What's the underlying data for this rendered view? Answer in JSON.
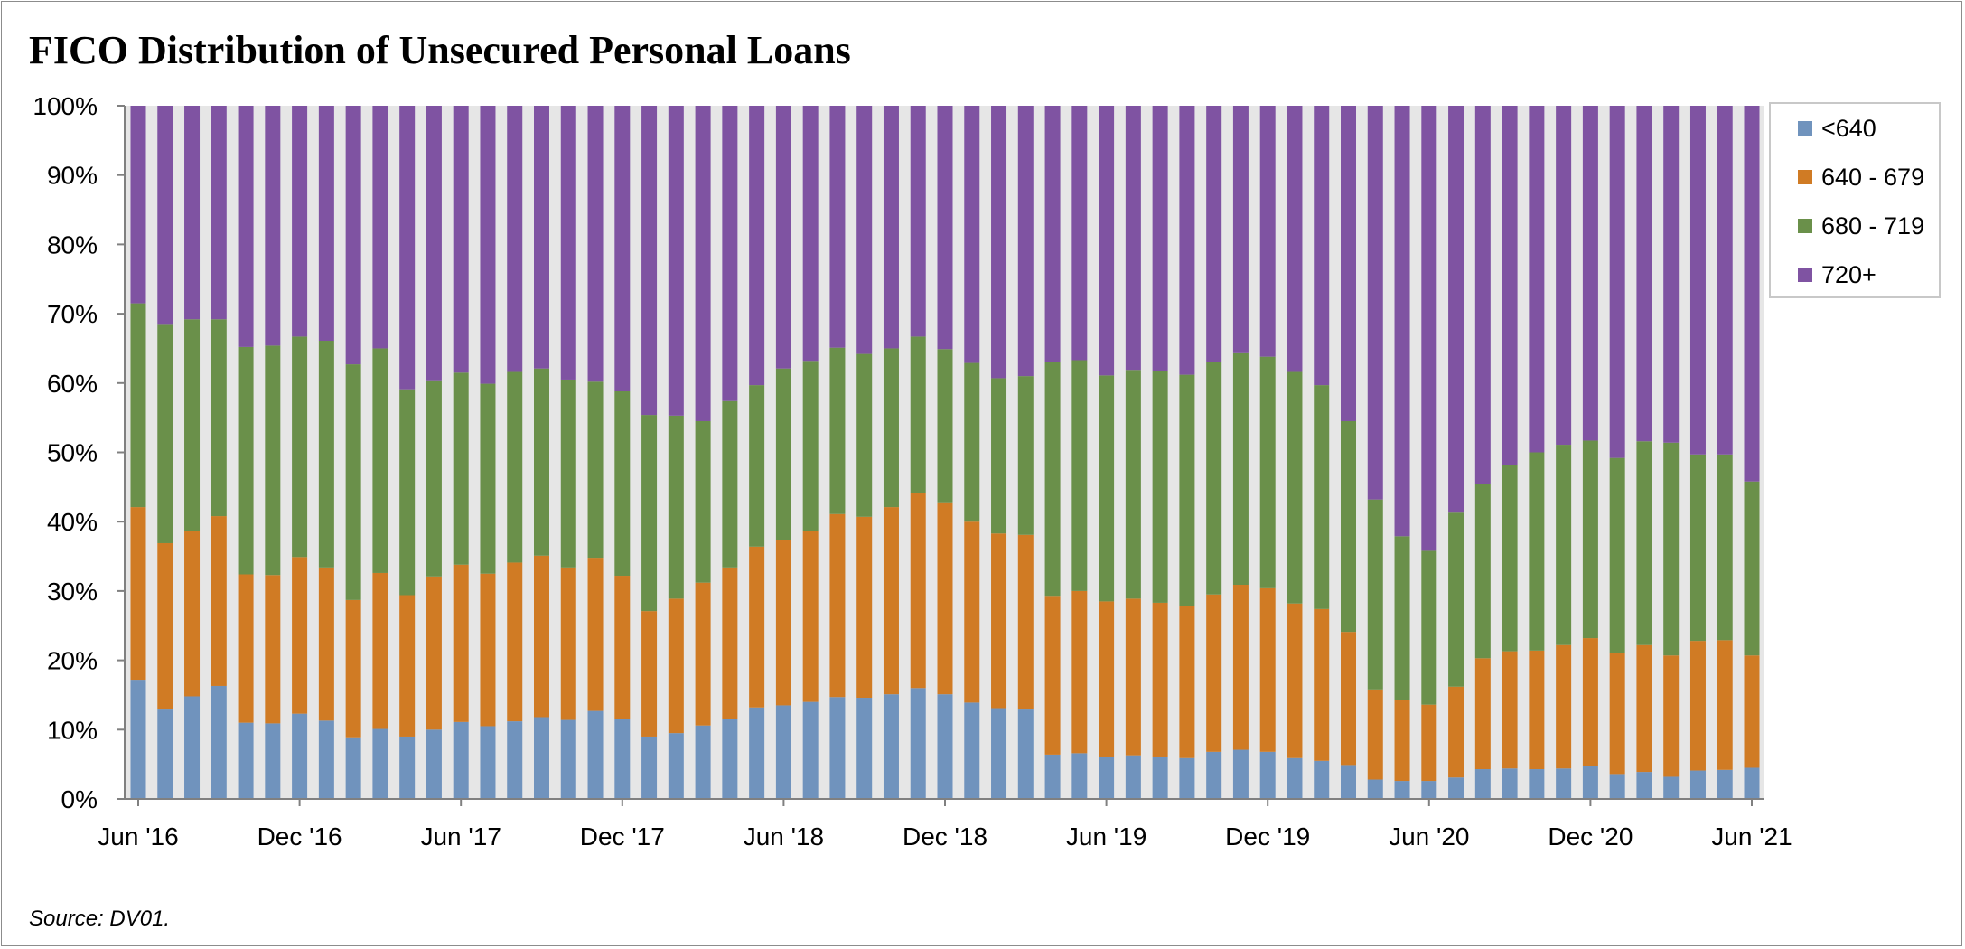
{
  "title": "FICO Distribution of Unsecured Personal Loans",
  "source": "Source: DV01.",
  "chart_data": {
    "type": "bar",
    "stacked": true,
    "normalized": true,
    "title": "FICO Distribution of Unsecured Personal Loans",
    "xlabel": "",
    "ylabel": "",
    "ylim": [
      0,
      100
    ],
    "y_ticks": [
      "0%",
      "10%",
      "20%",
      "30%",
      "40%",
      "50%",
      "60%",
      "70%",
      "80%",
      "90%",
      "100%"
    ],
    "x_tick_labels": [
      {
        "index": 0,
        "label": "Jun '16"
      },
      {
        "index": 6,
        "label": "Dec '16"
      },
      {
        "index": 12,
        "label": "Jun '17"
      },
      {
        "index": 18,
        "label": "Dec '17"
      },
      {
        "index": 24,
        "label": "Jun '18"
      },
      {
        "index": 30,
        "label": "Dec '18"
      },
      {
        "index": 36,
        "label": "Jun '19"
      },
      {
        "index": 42,
        "label": "Dec '19"
      },
      {
        "index": 48,
        "label": "Jun '20"
      },
      {
        "index": 54,
        "label": "Dec '20"
      },
      {
        "index": 60,
        "label": "Jun '21"
      }
    ],
    "categories": [
      "Jun '16",
      "Jul '16",
      "Aug '16",
      "Sep '16",
      "Oct '16",
      "Nov '16",
      "Dec '16",
      "Jan '17",
      "Feb '17",
      "Mar '17",
      "Apr '17",
      "May '17",
      "Jun '17",
      "Jul '17",
      "Aug '17",
      "Sep '17",
      "Oct '17",
      "Nov '17",
      "Dec '17",
      "Jan '18",
      "Feb '18",
      "Mar '18",
      "Apr '18",
      "May '18",
      "Jun '18",
      "Jul '18",
      "Aug '18",
      "Sep '18",
      "Oct '18",
      "Nov '18",
      "Dec '18",
      "Jan '19",
      "Feb '19",
      "Mar '19",
      "Apr '19",
      "May '19",
      "Jun '19",
      "Jul '19",
      "Aug '19",
      "Sep '19",
      "Oct '19",
      "Nov '19",
      "Dec '19",
      "Jan '20",
      "Feb '20",
      "Mar '20",
      "Apr '20",
      "May '20",
      "Jun '20",
      "Jul '20",
      "Aug '20",
      "Sep '20",
      "Oct '20",
      "Nov '20",
      "Dec '20",
      "Jan '21",
      "Feb '21",
      "Mar '21",
      "Apr '21",
      "May '21",
      "Jun '21"
    ],
    "legend_position": "right",
    "grid": false,
    "series": [
      {
        "name": "<640",
        "color": "#7093bd",
        "values": [
          17.2,
          12.9,
          14.8,
          16.3,
          11.0,
          10.9,
          12.3,
          11.3,
          8.9,
          10.1,
          9.0,
          10.0,
          11.1,
          10.5,
          11.2,
          11.8,
          11.4,
          12.7,
          11.6,
          9.0,
          9.5,
          10.6,
          11.6,
          13.2,
          13.5,
          14.0,
          14.7,
          14.6,
          15.1,
          16.0,
          15.1,
          13.9,
          13.1,
          12.9,
          6.4,
          6.6,
          6.0,
          6.3,
          6.0,
          5.9,
          6.8,
          7.1,
          6.8,
          5.9,
          5.5,
          4.9,
          2.8,
          2.6,
          2.6,
          3.1,
          4.3,
          4.4,
          4.3,
          4.4,
          4.8,
          3.6,
          3.9,
          3.2,
          4.1,
          4.2,
          4.5
        ]
      },
      {
        "name": "640 - 679",
        "color": "#d07b24",
        "values": [
          24.9,
          24.0,
          23.9,
          24.5,
          21.4,
          21.4,
          22.6,
          22.1,
          19.8,
          22.5,
          20.4,
          22.1,
          22.7,
          22.0,
          22.9,
          23.3,
          22.0,
          22.1,
          20.6,
          18.1,
          19.4,
          20.6,
          21.8,
          23.2,
          23.9,
          24.6,
          26.4,
          26.1,
          27.0,
          28.1,
          27.7,
          26.1,
          25.2,
          25.2,
          22.9,
          23.4,
          22.5,
          22.6,
          22.3,
          22.0,
          22.7,
          23.8,
          23.6,
          22.3,
          21.9,
          19.2,
          13.0,
          11.7,
          11.0,
          13.1,
          16.0,
          16.9,
          17.1,
          17.8,
          18.4,
          17.4,
          18.3,
          17.5,
          18.7,
          18.7,
          16.2
        ]
      },
      {
        "name": "680 - 719",
        "color": "#6a904a",
        "values": [
          29.4,
          31.5,
          30.5,
          28.4,
          32.8,
          33.1,
          31.8,
          32.7,
          34.0,
          32.4,
          29.7,
          28.3,
          27.7,
          27.4,
          27.5,
          27.0,
          27.1,
          25.4,
          26.6,
          28.3,
          26.4,
          23.3,
          24.0,
          23.3,
          24.7,
          24.6,
          24.0,
          23.5,
          22.9,
          22.6,
          22.1,
          22.9,
          22.4,
          22.9,
          33.8,
          33.3,
          32.6,
          33.0,
          33.5,
          33.3,
          33.6,
          33.4,
          33.4,
          33.4,
          32.3,
          30.4,
          27.4,
          23.6,
          22.2,
          25.1,
          25.1,
          26.9,
          28.6,
          28.9,
          28.5,
          28.2,
          29.4,
          30.7,
          26.9,
          26.8,
          25.1
        ]
      },
      {
        "name": "720+",
        "color": "#7f53a2",
        "values": [
          28.5,
          31.6,
          30.8,
          30.8,
          34.8,
          34.6,
          33.3,
          33.9,
          37.3,
          35.0,
          40.9,
          39.6,
          38.5,
          40.1,
          38.4,
          37.9,
          39.5,
          39.8,
          41.2,
          44.6,
          44.7,
          45.5,
          42.6,
          40.3,
          37.9,
          36.8,
          34.9,
          35.8,
          35.0,
          33.3,
          35.1,
          37.1,
          39.3,
          39.0,
          36.9,
          36.7,
          38.9,
          38.1,
          38.2,
          38.8,
          36.9,
          35.7,
          36.2,
          38.4,
          40.3,
          45.5,
          56.8,
          62.1,
          64.2,
          58.7,
          54.6,
          51.8,
          50.0,
          48.9,
          48.3,
          50.8,
          48.4,
          48.6,
          50.3,
          50.3,
          54.2
        ]
      }
    ]
  }
}
